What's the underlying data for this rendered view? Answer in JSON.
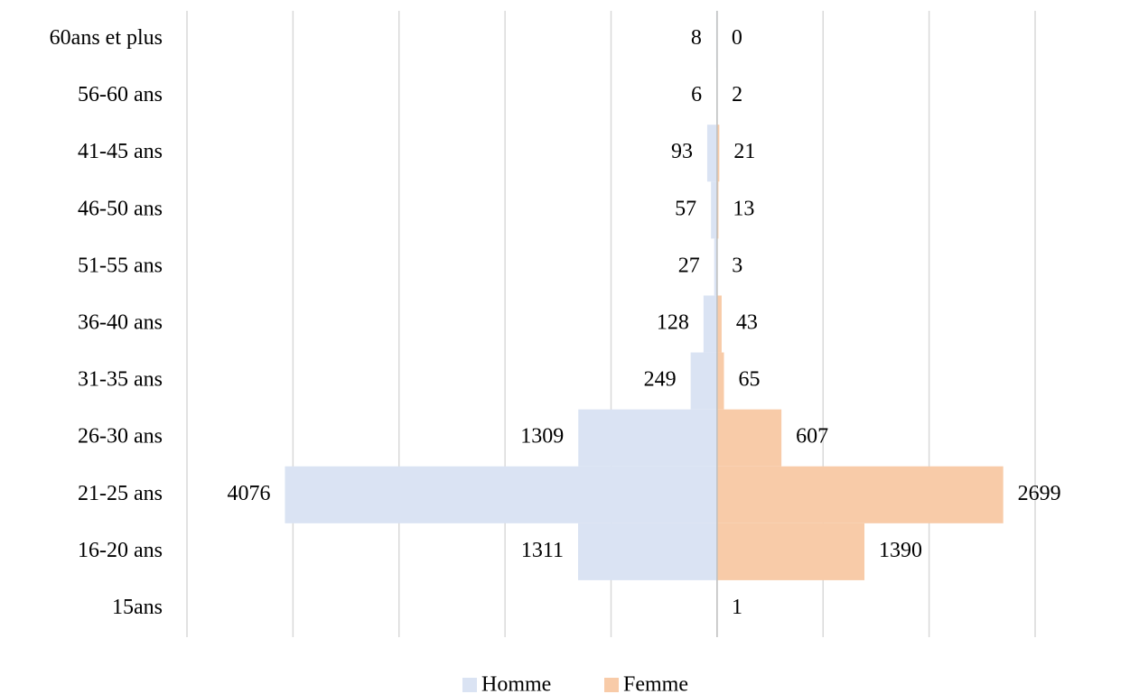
{
  "chart_data": {
    "type": "pyramid",
    "categories": [
      "60ans et plus",
      "56-60 ans",
      "41-45 ans",
      "46-50 ans",
      "51-55 ans",
      "36-40 ans",
      "31-35 ans",
      "26-30 ans",
      "21-25 ans",
      "16-20 ans",
      "15ans"
    ],
    "series": [
      {
        "name": "Homme",
        "color": "#dae3f3",
        "side": "left",
        "values": [
          8,
          6,
          93,
          57,
          27,
          128,
          249,
          1309,
          4076,
          1311,
          null
        ]
      },
      {
        "name": "Femme",
        "color": "#f8cba8",
        "side": "right",
        "values": [
          0,
          2,
          21,
          13,
          3,
          43,
          65,
          607,
          2699,
          1390,
          1
        ]
      }
    ],
    "xlim": [
      -5000,
      3000
    ],
    "xticks": [
      -5000,
      -4000,
      -3000,
      -2000,
      -1000,
      0,
      1000,
      2000,
      3000
    ],
    "grid": true,
    "legend": "bottom"
  }
}
